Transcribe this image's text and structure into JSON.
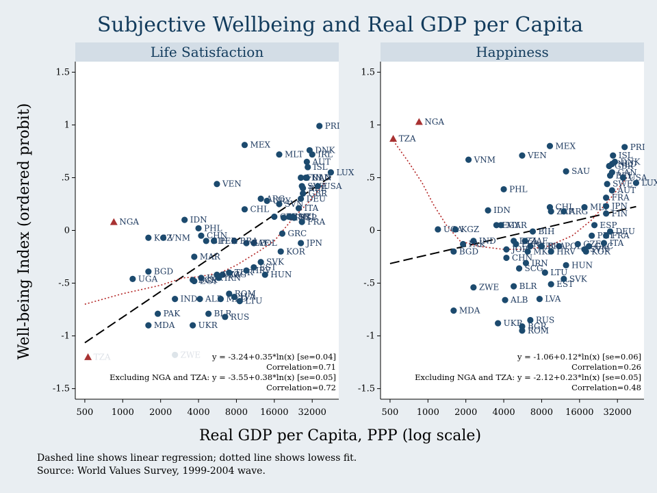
{
  "title": "Subjective Wellbeing and Real GDP per Capita",
  "ylabel": "Well-being Index (ordered probit)",
  "xlabel": "Real GDP per Capita, PPP (log scale)",
  "notes": [
    "Dashed line shows linear regression; dotted line shows lowess fit.",
    "Source: World Values Survey, 1999-2004 wave."
  ],
  "colors": {
    "background": "#e9eef2",
    "panel_strip": "#d3dde6",
    "marker": "#1c4a6e",
    "outlier": "#a83232",
    "lowess": "#b22222",
    "regression": "#000000"
  },
  "x_ticks": [
    "500",
    "1000",
    "2000",
    "4000",
    "8000",
    "16000",
    "32000"
  ],
  "y_ticks": [
    "1.5",
    "1",
    ".5",
    "0",
    "-.5",
    "-1",
    "-1.5"
  ],
  "chart_data": [
    {
      "type": "scatter",
      "title": "Life Satisfaction",
      "xscale": "log2",
      "xlim": [
        420,
        52000
      ],
      "ylim": [
        -1.6,
        1.6
      ],
      "stats": [
        "y = -3.24+0.35*ln(x) [se=0.04]",
        "Correlation=0.71",
        "Excluding NGA and TZA: y = -3.55+0.38*ln(x) [se=0.05]",
        "Correlation=0.72"
      ],
      "regression": {
        "a": -3.24,
        "b": 0.35,
        "x_from": 500,
        "x_to": 45000
      },
      "lowess": [
        [
          500,
          -0.7
        ],
        [
          1000,
          -0.6
        ],
        [
          2000,
          -0.52
        ],
        [
          3000,
          -0.45
        ],
        [
          4000,
          -0.44
        ],
        [
          6000,
          -0.4
        ],
        [
          8000,
          -0.33
        ],
        [
          12000,
          -0.2
        ],
        [
          16000,
          -0.1
        ],
        [
          22000,
          0.1
        ],
        [
          30000,
          0.27
        ],
        [
          40000,
          0.45
        ]
      ],
      "points": [
        {
          "label": "TZA",
          "x": 530,
          "y": -1.2,
          "outlier": true
        },
        {
          "label": "NGA",
          "x": 850,
          "y": 0.08,
          "outlier": true
        },
        {
          "label": "UGA",
          "x": 1200,
          "y": -0.46
        },
        {
          "label": "BGD",
          "x": 1600,
          "y": -0.39
        },
        {
          "label": "KGZ",
          "x": 1600,
          "y": -0.07
        },
        {
          "label": "MDA",
          "x": 1600,
          "y": -0.9
        },
        {
          "label": "VNM",
          "x": 2100,
          "y": -0.07
        },
        {
          "label": "PAK",
          "x": 1900,
          "y": -0.79
        },
        {
          "label": "IND",
          "x": 2600,
          "y": -0.65
        },
        {
          "label": "ZWE",
          "x": 2600,
          "y": -1.18
        },
        {
          "label": "IDN",
          "x": 3100,
          "y": 0.1
        },
        {
          "label": "PHL",
          "x": 4000,
          "y": 0.02
        },
        {
          "label": "CHN",
          "x": 4200,
          "y": -0.05
        },
        {
          "label": "BIH",
          "x": 4600,
          "y": -0.1
        },
        {
          "label": "MAR",
          "x": 3700,
          "y": -0.25
        },
        {
          "label": "BGR",
          "x": 3600,
          "y": -0.47
        },
        {
          "label": "JOR",
          "x": 4200,
          "y": -0.45
        },
        {
          "label": "ALB",
          "x": 4100,
          "y": -0.65
        },
        {
          "label": "UKR",
          "x": 3600,
          "y": -0.9
        },
        {
          "label": "BLR",
          "x": 4800,
          "y": -0.79
        },
        {
          "label": "RUS",
          "x": 6500,
          "y": -0.82
        },
        {
          "label": "MKD",
          "x": 6000,
          "y": -0.65
        },
        {
          "label": "LVA",
          "x": 7700,
          "y": -0.63
        },
        {
          "label": "LTU",
          "x": 8500,
          "y": -0.67
        },
        {
          "label": "ROM",
          "x": 7000,
          "y": -0.6
        },
        {
          "label": "SCG",
          "x": 6200,
          "y": -0.42
        },
        {
          "label": "EGY",
          "x": 3700,
          "y": -0.48
        },
        {
          "label": "DZA",
          "x": 5600,
          "y": -0.42
        },
        {
          "label": "IRN",
          "x": 5800,
          "y": -0.45
        },
        {
          "label": "TUR",
          "x": 7000,
          "y": -0.4
        },
        {
          "label": "HRV",
          "x": 9600,
          "y": -0.38
        },
        {
          "label": "EST",
          "x": 11000,
          "y": -0.35
        },
        {
          "label": "SVK",
          "x": 12500,
          "y": -0.3
        },
        {
          "label": "HUN",
          "x": 13500,
          "y": -0.42
        },
        {
          "label": "POL",
          "x": 11000,
          "y": -0.12
        },
        {
          "label": "ZAF",
          "x": 9600,
          "y": -0.12
        },
        {
          "label": "BRA",
          "x": 7700,
          "y": -0.1
        },
        {
          "label": "PER",
          "x": 5300,
          "y": -0.1
        },
        {
          "label": "VEN",
          "x": 5600,
          "y": 0.44
        },
        {
          "label": "MEX",
          "x": 9300,
          "y": 0.81
        },
        {
          "label": "CHL",
          "x": 9300,
          "y": 0.2
        },
        {
          "label": "ARG",
          "x": 12500,
          "y": 0.3
        },
        {
          "label": "URY",
          "x": 14000,
          "y": 0.28
        },
        {
          "label": "SVN",
          "x": 17500,
          "y": 0.25
        },
        {
          "label": "CZE",
          "x": 16000,
          "y": 0.13
        },
        {
          "label": "KOR",
          "x": 18000,
          "y": -0.2
        },
        {
          "label": "GRC",
          "x": 18500,
          "y": -0.03
        },
        {
          "label": "MLT",
          "x": 17500,
          "y": 0.72
        },
        {
          "label": "ISR",
          "x": 21000,
          "y": 0.13
        },
        {
          "label": "PRT",
          "x": 19000,
          "y": 0.12
        },
        {
          "label": "ESP",
          "x": 23000,
          "y": 0.12
        },
        {
          "label": "NZL",
          "x": 22500,
          "y": 0.13
        },
        {
          "label": "JPN",
          "x": 26000,
          "y": -0.12
        },
        {
          "label": "ITA",
          "x": 25000,
          "y": 0.21
        },
        {
          "label": "FRA",
          "x": 26500,
          "y": 0.08
        },
        {
          "label": "DEU",
          "x": 26000,
          "y": 0.3
        },
        {
          "label": "GBR",
          "x": 27000,
          "y": 0.35
        },
        {
          "label": "BEL",
          "x": 27000,
          "y": 0.4
        },
        {
          "label": "SWE",
          "x": 26500,
          "y": 0.42
        },
        {
          "label": "FIN",
          "x": 26000,
          "y": 0.5
        },
        {
          "label": "NLD",
          "x": 28500,
          "y": 0.5
        },
        {
          "label": "CAN",
          "x": 29000,
          "y": 0.5
        },
        {
          "label": "AUT",
          "x": 29000,
          "y": 0.65
        },
        {
          "label": "ISL",
          "x": 29500,
          "y": 0.6
        },
        {
          "label": "IRL",
          "x": 32000,
          "y": 0.72
        },
        {
          "label": "DNK",
          "x": 30500,
          "y": 0.76
        },
        {
          "label": "USA",
          "x": 35500,
          "y": 0.42
        },
        {
          "label": "PRI",
          "x": 36500,
          "y": 0.99
        },
        {
          "label": "LUX",
          "x": 45000,
          "y": 0.55
        }
      ]
    },
    {
      "type": "scatter",
      "title": "Happiness",
      "xscale": "log2",
      "xlim": [
        420,
        52000
      ],
      "ylim": [
        -1.6,
        1.6
      ],
      "stats": [
        "y = -1.06+0.12*ln(x) [se=0.06]",
        "Correlation=0.26",
        "Excluding NGA and TZA: y = -2.12+0.23*ln(x) [se=0.05]",
        "Correlation=0.48"
      ],
      "regression": {
        "a": -1.06,
        "b": 0.12,
        "x_from": 500,
        "x_to": 45000
      },
      "lowess": [
        [
          530,
          0.85
        ],
        [
          700,
          0.65
        ],
        [
          900,
          0.45
        ],
        [
          1100,
          0.25
        ],
        [
          1400,
          0.05
        ],
        [
          1800,
          -0.1
        ],
        [
          2500,
          -0.15
        ],
        [
          4000,
          -0.18
        ],
        [
          6000,
          -0.18
        ],
        [
          9000,
          -0.15
        ],
        [
          14000,
          -0.05
        ],
        [
          20000,
          0.1
        ],
        [
          28000,
          0.3
        ],
        [
          38000,
          0.5
        ]
      ],
      "points": [
        {
          "label": "TZA",
          "x": 530,
          "y": 0.87,
          "outlier": true
        },
        {
          "label": "NGA",
          "x": 850,
          "y": 1.03,
          "outlier": true
        },
        {
          "label": "UGA",
          "x": 1200,
          "y": 0.01
        },
        {
          "label": "KGZ",
          "x": 1650,
          "y": 0.01
        },
        {
          "label": "IND",
          "x": 2300,
          "y": -0.1
        },
        {
          "label": "PAK",
          "x": 1900,
          "y": -0.13
        },
        {
          "label": "BGD",
          "x": 1600,
          "y": -0.2
        },
        {
          "label": "MDA",
          "x": 1600,
          "y": -0.76
        },
        {
          "label": "ZWE",
          "x": 2300,
          "y": -0.54
        },
        {
          "label": "VNM",
          "x": 2100,
          "y": 0.67
        },
        {
          "label": "IDN",
          "x": 3000,
          "y": 0.19
        },
        {
          "label": "PHL",
          "x": 4000,
          "y": 0.39
        },
        {
          "label": "EGY",
          "x": 3500,
          "y": 0.05
        },
        {
          "label": "MAR",
          "x": 3800,
          "y": 0.05
        },
        {
          "label": "DZA",
          "x": 4800,
          "y": -0.1
        },
        {
          "label": "JOR",
          "x": 4200,
          "y": -0.18
        },
        {
          "label": "CHN",
          "x": 4200,
          "y": -0.26
        },
        {
          "label": "ALB",
          "x": 4100,
          "y": -0.66
        },
        {
          "label": "UKR",
          "x": 3600,
          "y": -0.88
        },
        {
          "label": "BGR",
          "x": 5600,
          "y": -0.91
        },
        {
          "label": "ROM",
          "x": 5600,
          "y": -0.95
        },
        {
          "label": "RUS",
          "x": 6500,
          "y": -0.85
        },
        {
          "label": "BLR",
          "x": 4800,
          "y": -0.53
        },
        {
          "label": "LVA",
          "x": 7700,
          "y": -0.65
        },
        {
          "label": "SCG",
          "x": 5300,
          "y": -0.36
        },
        {
          "label": "LTU",
          "x": 8500,
          "y": -0.4
        },
        {
          "label": "EST",
          "x": 9500,
          "y": -0.51
        },
        {
          "label": "SVK",
          "x": 12000,
          "y": -0.46
        },
        {
          "label": "HUN",
          "x": 12500,
          "y": -0.33
        },
        {
          "label": "IRN",
          "x": 6000,
          "y": -0.31
        },
        {
          "label": "MKD",
          "x": 6200,
          "y": -0.2
        },
        {
          "label": "HRV",
          "x": 9500,
          "y": -0.2
        },
        {
          "label": "TUR",
          "x": 6500,
          "y": -0.15
        },
        {
          "label": "ZAF",
          "x": 5900,
          "y": -0.1
        },
        {
          "label": "BIH",
          "x": 6800,
          "y": -0.01
        },
        {
          "label": "PER",
          "x": 5000,
          "y": -0.13
        },
        {
          "label": "POL",
          "x": 11000,
          "y": -0.15
        },
        {
          "label": "BRA",
          "x": 8000,
          "y": -0.15
        },
        {
          "label": "CZE",
          "x": 15500,
          "y": -0.13
        },
        {
          "label": "KOR",
          "x": 18000,
          "y": -0.2
        },
        {
          "label": "GRC",
          "x": 19000,
          "y": -0.15
        },
        {
          "label": "SVN",
          "x": 17500,
          "y": -0.18
        },
        {
          "label": "PRT",
          "x": 20000,
          "y": -0.05
        },
        {
          "label": "ITA",
          "x": 25000,
          "y": -0.12
        },
        {
          "label": "DEU",
          "x": 28000,
          "y": -0.01
        },
        {
          "label": "FRA",
          "x": 26000,
          "y": -0.05
        },
        {
          "label": "ESP",
          "x": 21000,
          "y": 0.05
        },
        {
          "label": "MEX",
          "x": 9300,
          "y": 0.8
        },
        {
          "label": "VEN",
          "x": 5600,
          "y": 0.71
        },
        {
          "label": "SAU",
          "x": 12500,
          "y": 0.56
        },
        {
          "label": "CHL",
          "x": 9300,
          "y": 0.22
        },
        {
          "label": "ZAF_ARG",
          "x": 9500,
          "y": 0.18
        },
        {
          "label": "ARG",
          "x": 12000,
          "y": 0.18
        },
        {
          "label": "MLT",
          "x": 17500,
          "y": 0.22
        },
        {
          "label": "JPN",
          "x": 26000,
          "y": 0.23
        },
        {
          "label": "FIN",
          "x": 26000,
          "y": 0.16
        },
        {
          "label": "FRA2",
          "x": 26000,
          "y": 0.31
        },
        {
          "label": "AUT",
          "x": 29000,
          "y": 0.38
        },
        {
          "label": "SWE",
          "x": 26500,
          "y": 0.44
        },
        {
          "label": "CAN",
          "x": 29000,
          "y": 0.55
        },
        {
          "label": "BEL",
          "x": 28000,
          "y": 0.52
        },
        {
          "label": "GBR",
          "x": 27500,
          "y": 0.61
        },
        {
          "label": "NLD",
          "x": 29000,
          "y": 0.63
        },
        {
          "label": "DNK",
          "x": 30500,
          "y": 0.65
        },
        {
          "label": "ISL",
          "x": 29500,
          "y": 0.71
        },
        {
          "label": "USA",
          "x": 35500,
          "y": 0.5
        },
        {
          "label": "PRI",
          "x": 36500,
          "y": 0.79
        },
        {
          "label": "LUX",
          "x": 45000,
          "y": 0.45
        }
      ]
    }
  ]
}
